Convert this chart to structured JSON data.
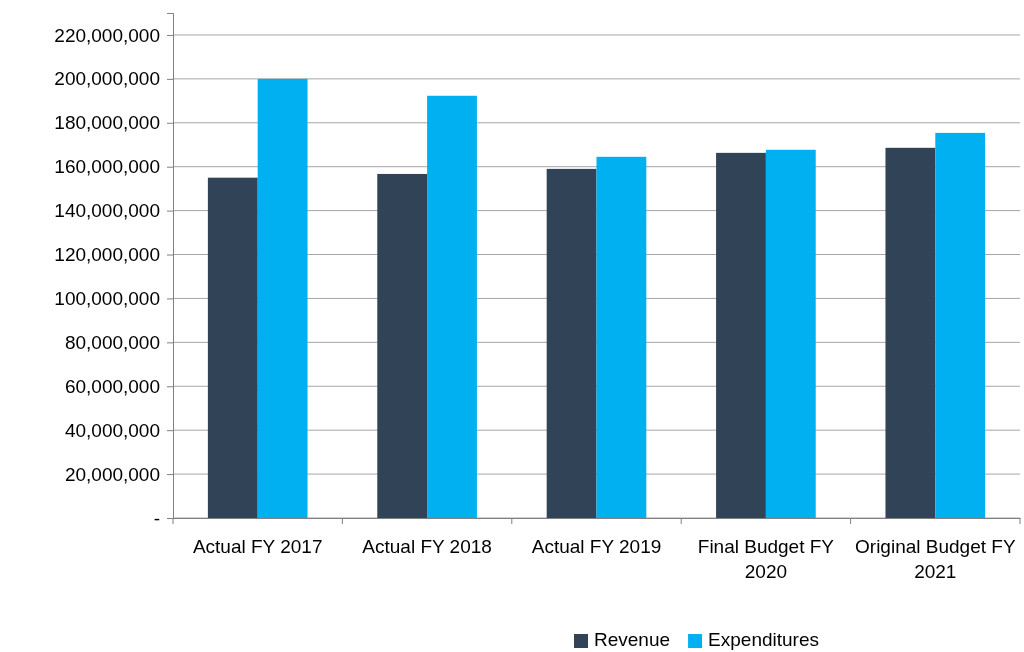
{
  "chart_data": {
    "type": "bar",
    "categories": [
      "Actual FY 2017",
      "Actual FY 2018",
      "Actual FY 2019",
      "Final Budget FY 2020",
      "Original Budget FY 2021"
    ],
    "series": [
      {
        "name": "Revenue",
        "color": "#314457",
        "values": [
          155000000,
          156700000,
          159000000,
          166300000,
          168600000
        ]
      },
      {
        "name": "Expenditures",
        "color": "#00b0f0",
        "values": [
          200000000,
          192300000,
          164500000,
          167700000,
          175400000
        ]
      }
    ],
    "ylim": [
      0,
      230000000
    ],
    "yticks": [
      {
        "value": 0,
        "label": "-"
      },
      {
        "value": 20000000,
        "label": "20,000,000"
      },
      {
        "value": 40000000,
        "label": "40,000,000"
      },
      {
        "value": 60000000,
        "label": "60,000,000"
      },
      {
        "value": 80000000,
        "label": "80,000,000"
      },
      {
        "value": 100000000,
        "label": "100,000,000"
      },
      {
        "value": 120000000,
        "label": "120,000,000"
      },
      {
        "value": 140000000,
        "label": "140,000,000"
      },
      {
        "value": 160000000,
        "label": "160,000,000"
      },
      {
        "value": 180000000,
        "label": "180,000,000"
      },
      {
        "value": 200000000,
        "label": "200,000,000"
      },
      {
        "value": 220000000,
        "label": "220,000,000"
      }
    ],
    "grid": "y",
    "legend": "bottom"
  }
}
